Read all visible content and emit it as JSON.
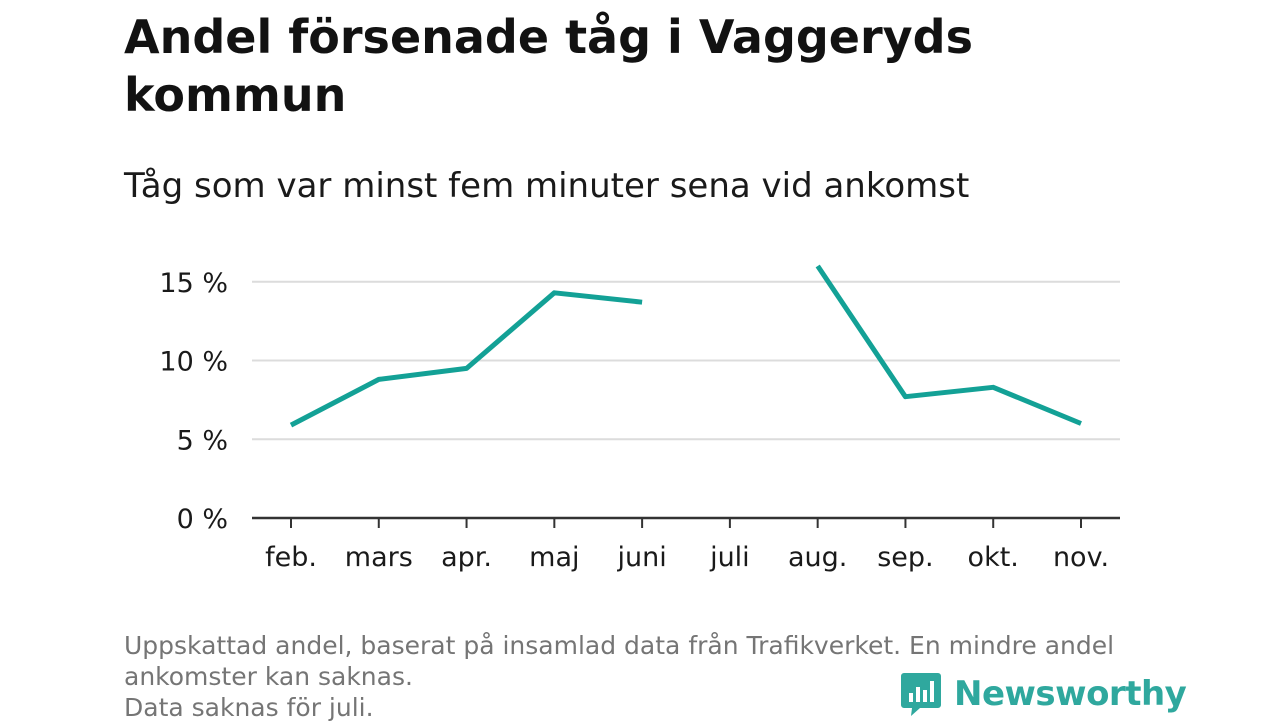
{
  "title": "Andel försenade tåg i Vaggeryds kommun",
  "subtitle": "Tåg som var minst fem minuter sena vid ankomst",
  "footnote": [
    "Uppskattad andel, baserat på insamlad data från Trafikverket. En mindre andel",
    "ankomster kan saknas.",
    "Data saknas för juli."
  ],
  "logo_text": "Newsworthy",
  "colors": {
    "line": "#13a196",
    "grid": "#dcdcdc",
    "axis": "#333333",
    "logo": "#2fa89e"
  },
  "chart_data": {
    "type": "line",
    "categories": [
      "feb.",
      "mars",
      "apr.",
      "maj",
      "juni",
      "juli",
      "aug.",
      "sep.",
      "okt.",
      "nov."
    ],
    "series": [
      {
        "values": [
          5.9,
          8.8,
          9.5,
          14.3,
          13.7,
          null,
          16.0,
          7.7,
          8.3,
          6.0
        ]
      }
    ],
    "yticks": [
      0,
      5,
      10,
      15
    ],
    "ytick_labels": [
      "0 %",
      "5 %",
      "10 %",
      "15 %"
    ],
    "ylim": [
      0,
      16
    ],
    "grid": true
  }
}
